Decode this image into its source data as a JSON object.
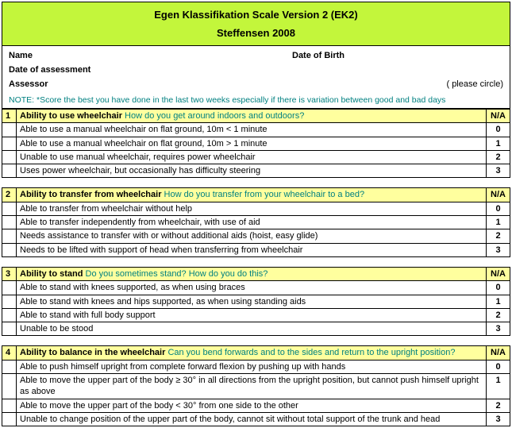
{
  "header": {
    "title": "Egen Klassifikation Scale Version 2 (EK2)",
    "subtitle": "Steffensen 2008"
  },
  "info": {
    "name_label": "Name",
    "dob_label": "Date of Birth",
    "doa_label": "Date of assessment",
    "assessor_label": "Assessor",
    "please_circle": "( please circle)",
    "note": "NOTE:  *Score the best you have done in the last two weeks especially if there is variation between good and bad days"
  },
  "sections": [
    {
      "num": "1",
      "title": "Ability to use wheelchair",
      "question": "How do you get around indoors and outdoors?",
      "na": "N/A",
      "rows": [
        {
          "text": "Able to use a manual wheelchair on flat ground, 10m < 1 minute",
          "score": "0"
        },
        {
          "text": "Able to use a manual wheelchair on flat ground, 10m > 1 minute",
          "score": "1"
        },
        {
          "text": "Unable to use manual wheelchair, requires power wheelchair",
          "score": "2"
        },
        {
          "text": "Uses power wheelchair, but occasionally has difficulty steering",
          "score": "3"
        }
      ]
    },
    {
      "num": "2",
      "title": "Ability to transfer from wheelchair",
      "question": "How do you transfer from your wheelchair to a bed?",
      "na": "N/A",
      "rows": [
        {
          "text": "Able to transfer from wheelchair without help",
          "score": "0"
        },
        {
          "text": "Able to transfer independently from wheelchair, with use of aid",
          "score": "1"
        },
        {
          "text": "Needs assistance to transfer with or without additional aids (hoist, easy glide)",
          "score": "2"
        },
        {
          "text": "Needs to be lifted with support of head when transferring from wheelchair",
          "score": "3"
        }
      ]
    },
    {
      "num": "3",
      "title": "Ability to stand",
      "question": "Do you sometimes stand? How do you do this?",
      "na": "N/A",
      "rows": [
        {
          "text": "Able to stand with knees supported, as when using braces",
          "score": "0"
        },
        {
          "text": "Able to stand with knees and hips supported, as when using standing aids",
          "score": "1"
        },
        {
          "text": "Able to stand with full body support",
          "score": "2"
        },
        {
          "text": "Unable to be stood",
          "score": "3"
        }
      ]
    },
    {
      "num": "4",
      "title": "Ability to balance in the wheelchair",
      "question": "Can you bend forwards and to the sides and return to the upright position?",
      "na": "N/A",
      "rows": [
        {
          "text": "Able to push himself upright from complete forward flexion by pushing up with hands",
          "score": "0"
        },
        {
          "text": "Able to move the upper part of the body ≥ 30° in all directions from the upright position, but cannot push himself upright as above",
          "score": "1"
        },
        {
          "text": "Able to move the upper part of the body < 30° from one side to the other",
          "score": "2"
        },
        {
          "text": "Unable to change position of the upper  part of the body, cannot sit without total support of the trunk and head",
          "score": "3"
        }
      ]
    }
  ]
}
